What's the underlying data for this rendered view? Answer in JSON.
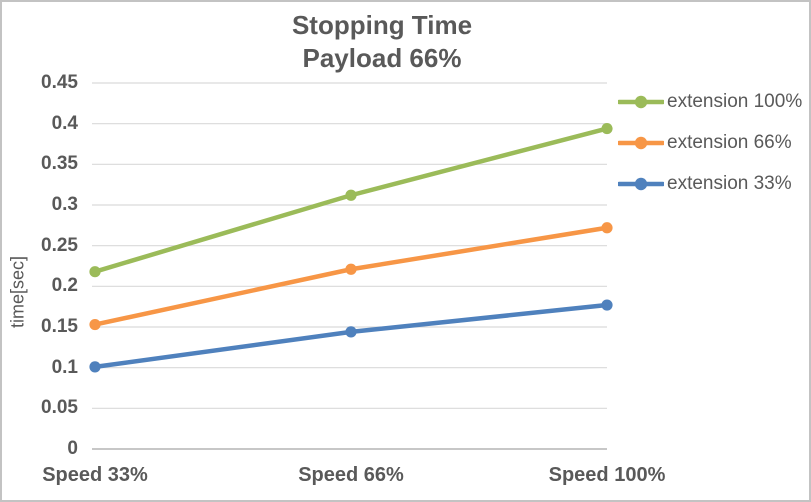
{
  "chart_data": {
    "type": "line",
    "title": "Stopping Time",
    "subtitle": "Payload 66%",
    "ylabel": "time[sec]",
    "xlabel": "",
    "categories": [
      "Speed 33%",
      "Speed 66%",
      "Speed 100%"
    ],
    "series": [
      {
        "name": "extension 100%",
        "color": "#9BBB59",
        "values": [
          0.218,
          0.312,
          0.394
        ]
      },
      {
        "name": "extension 66%",
        "color": "#F79646",
        "values": [
          0.153,
          0.221,
          0.272
        ]
      },
      {
        "name": "extension 33%",
        "color": "#4F81BD",
        "values": [
          0.101,
          0.144,
          0.177
        ]
      }
    ],
    "ylim": [
      0,
      0.45
    ],
    "ytick_step": 0.05,
    "ytick_labels": [
      "0",
      "0.05",
      "0.1",
      "0.15",
      "0.2",
      "0.25",
      "0.3",
      "0.35",
      "0.4",
      "0.45"
    ],
    "grid": true,
    "legend_position": "right",
    "gridline_color": "#D9D9D9",
    "axis_color": "#BFBFBF",
    "text_color": "#595959",
    "background_color": "#FFFFFF"
  }
}
